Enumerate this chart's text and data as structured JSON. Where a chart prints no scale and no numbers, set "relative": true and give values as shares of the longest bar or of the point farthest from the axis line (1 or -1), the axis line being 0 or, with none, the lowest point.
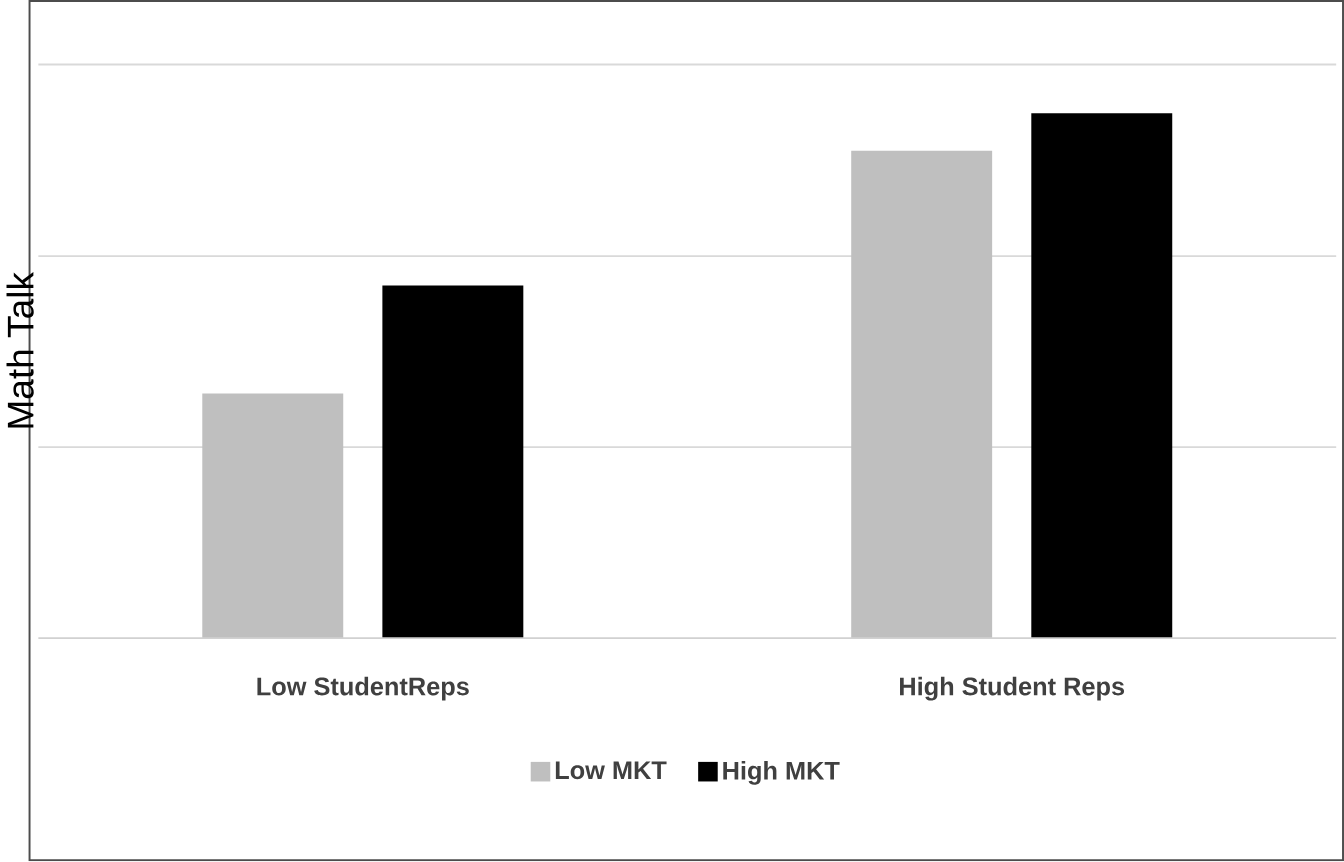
{
  "chart_data": {
    "type": "bar",
    "ylabel": "Math Talk",
    "categories": [
      "Low StudentReps",
      "High Student Reps"
    ],
    "relative": true,
    "legend": "bottom",
    "ref_lines": [
      {
        "axis": "y",
        "value": 0.364,
        "color": "#d9d9d9"
      },
      {
        "axis": "y",
        "value": 0.728,
        "color": "#d9d9d9"
      },
      {
        "axis": "y",
        "value": 1.093,
        "color": "#d9d9d9"
      }
    ],
    "series": [
      {
        "name": "Low MKT",
        "color": "#bfbfbf",
        "values": [
          0.466,
          0.929
        ]
      },
      {
        "name": "High MKT",
        "color": "#000000",
        "values": [
          0.672,
          1
        ]
      }
    ]
  }
}
